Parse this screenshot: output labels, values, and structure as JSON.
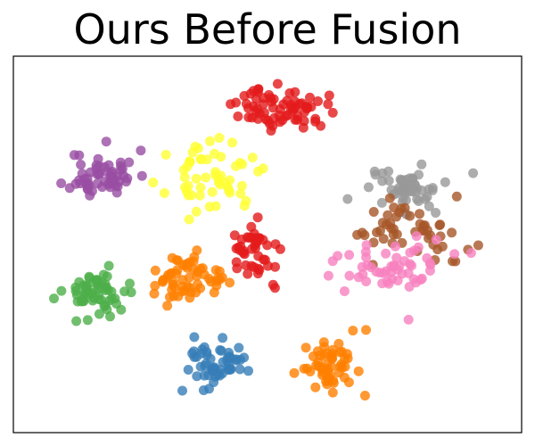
{
  "chart_data": {
    "type": "scatter",
    "title": "Ours Before Fusion",
    "xlabel": "",
    "ylabel": "",
    "xlim": [
      0,
      100
    ],
    "ylim": [
      0,
      100
    ],
    "grid": false,
    "legend": "none",
    "axes_ticks": "hidden",
    "marker_alpha": 0.8,
    "clusters": [
      {
        "color": "#984ea3",
        "center": [
          17,
          69
        ],
        "spread": [
          6,
          6
        ],
        "count": 60,
        "seed": 11
      },
      {
        "color": "#ffff33",
        "center": [
          39,
          68
        ],
        "spread": [
          8,
          8
        ],
        "count": 55,
        "seed": 23
      },
      {
        "color": "#e41a1c",
        "center": [
          53,
          87
        ],
        "spread": [
          8,
          5
        ],
        "count": 70,
        "seed": 37
      },
      {
        "color": "#e41a1c",
        "center": [
          48,
          48
        ],
        "spread": [
          5,
          7
        ],
        "count": 45,
        "seed": 41
      },
      {
        "color": "#4daf4a",
        "center": [
          16,
          37
        ],
        "spread": [
          6,
          6
        ],
        "count": 60,
        "seed": 53
      },
      {
        "color": "#ff7f00",
        "center": [
          34,
          40
        ],
        "spread": [
          7,
          6
        ],
        "count": 60,
        "seed": 67
      },
      {
        "color": "#377eb8",
        "center": [
          40,
          17
        ],
        "spread": [
          6,
          6
        ],
        "count": 55,
        "seed": 71
      },
      {
        "color": "#ff7f00",
        "center": [
          63,
          17
        ],
        "spread": [
          5,
          7
        ],
        "count": 55,
        "seed": 83
      },
      {
        "color": "#999999",
        "center": [
          76,
          65
        ],
        "spread": [
          9,
          6
        ],
        "count": 55,
        "seed": 97
      },
      {
        "color": "#a65628",
        "center": [
          78,
          54
        ],
        "spread": [
          11,
          8
        ],
        "count": 50,
        "seed": 101
      },
      {
        "color": "#f781bf",
        "center": [
          75,
          43
        ],
        "spread": [
          10,
          7
        ],
        "count": 55,
        "seed": 113
      }
    ]
  }
}
